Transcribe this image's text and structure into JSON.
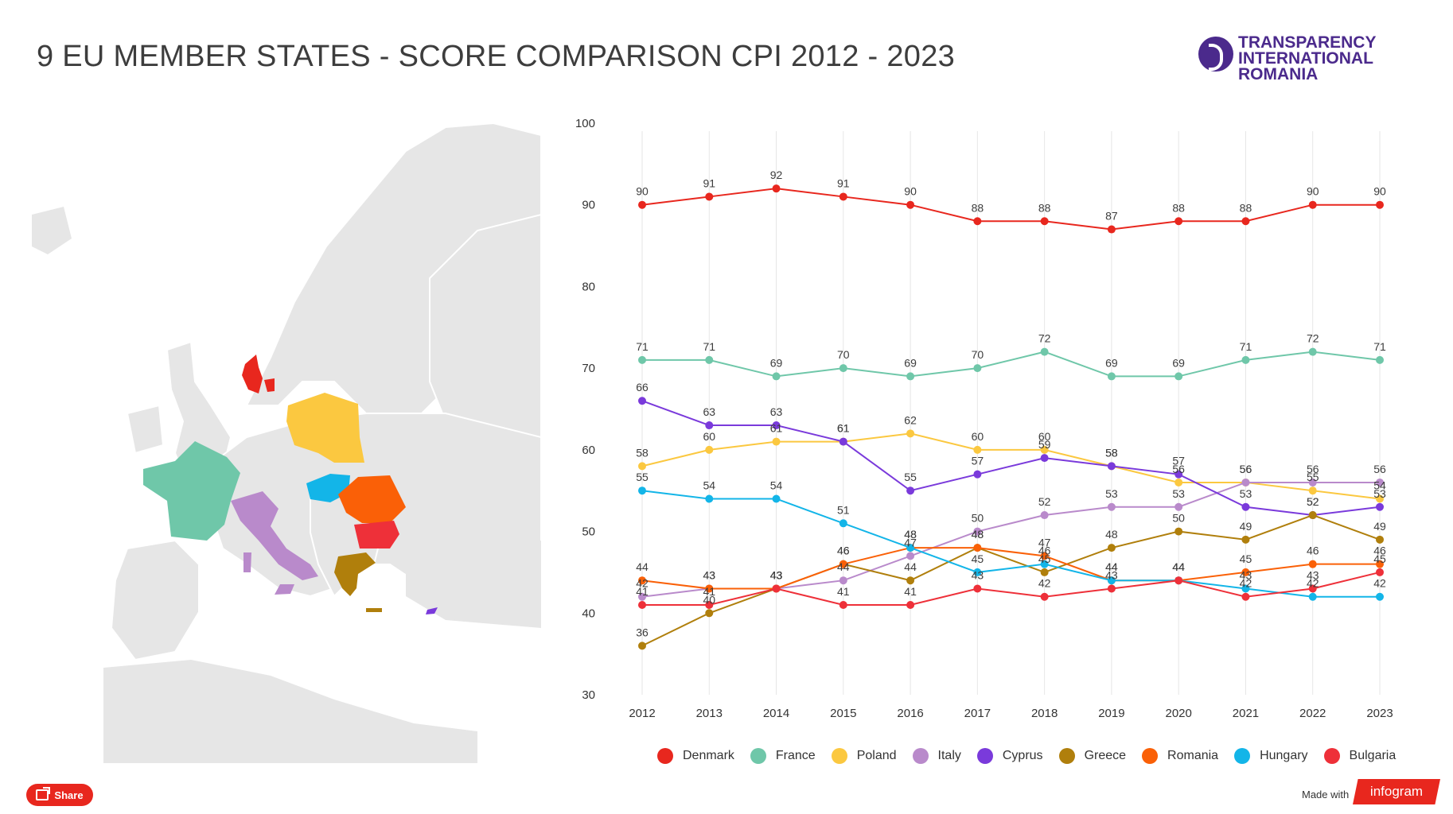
{
  "title": "9 EU MEMBER STATES - SCORE COMPARISON CPI 2012 - 2023",
  "logo": {
    "line1": "TRANSPARENCY",
    "line2": "INTERNATIONAL",
    "line3": "ROMANIA",
    "icon": "transparency-international-logo-icon"
  },
  "footer": {
    "share_label": "Share",
    "share_icon": "share-icon",
    "made_with": "Made with",
    "brand": "infogram"
  },
  "chart_data": {
    "type": "line",
    "x": [
      "2012",
      "2013",
      "2014",
      "2015",
      "2016",
      "2017",
      "2018",
      "2019",
      "2020",
      "2021",
      "2022",
      "2023"
    ],
    "ylim": [
      30,
      100
    ],
    "yticks": [
      "30",
      "40",
      "50",
      "60",
      "70",
      "80",
      "90",
      "100"
    ],
    "grid": "vertical",
    "legend": "bottom",
    "series": [
      {
        "name": "Denmark",
        "color": "#e8271e",
        "values": [
          90,
          91,
          92,
          91,
          90,
          88,
          88,
          87,
          88,
          88,
          90,
          90
        ]
      },
      {
        "name": "France",
        "color": "#6fc7a9",
        "values": [
          71,
          71,
          69,
          70,
          69,
          70,
          72,
          69,
          69,
          71,
          72,
          71
        ]
      },
      {
        "name": "Poland",
        "color": "#fbc840",
        "values": [
          58,
          60,
          61,
          61,
          62,
          60,
          60,
          58,
          56,
          56,
          55,
          54
        ]
      },
      {
        "name": "Italy",
        "color": "#b98acb",
        "values": [
          42,
          43,
          43,
          44,
          47,
          50,
          52,
          53,
          53,
          56,
          56,
          56
        ]
      },
      {
        "name": "Cyprus",
        "color": "#7a3adb",
        "values": [
          66,
          63,
          63,
          61,
          55,
          57,
          59,
          58,
          57,
          53,
          52,
          53
        ]
      },
      {
        "name": "Greece",
        "color": "#b07f0c",
        "values": [
          36,
          40,
          43,
          46,
          44,
          48,
          45,
          48,
          50,
          49,
          52,
          49
        ]
      },
      {
        "name": "Romania",
        "color": "#fa6007",
        "values": [
          44,
          43,
          43,
          46,
          48,
          48,
          47,
          44,
          44,
          45,
          46,
          46
        ]
      },
      {
        "name": "Hungary",
        "color": "#13b5e8",
        "values": [
          55,
          54,
          54,
          51,
          48,
          45,
          46,
          44,
          44,
          43,
          42,
          42
        ]
      },
      {
        "name": "Bulgaria",
        "color": "#ee3039",
        "values": [
          41,
          41,
          43,
          41,
          41,
          43,
          42,
          43,
          44,
          42,
          43,
          45
        ]
      }
    ]
  }
}
